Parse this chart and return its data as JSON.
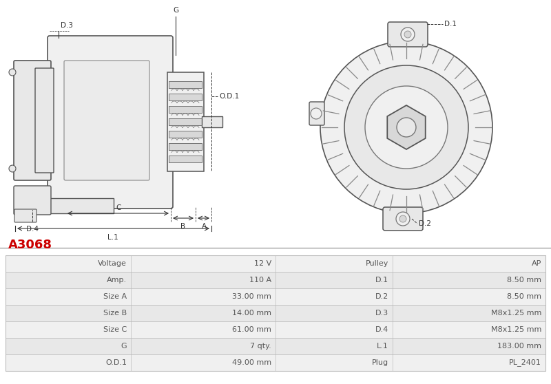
{
  "title": "A3068",
  "title_color": "#cc0000",
  "bg_color": "#ffffff",
  "table_rows": [
    [
      "Voltage",
      "12 V",
      "Pulley",
      "AP"
    ],
    [
      "Amp.",
      "110 A",
      "D.1",
      "8.50 mm"
    ],
    [
      "Size A",
      "33.00 mm",
      "D.2",
      "8.50 mm"
    ],
    [
      "Size B",
      "14.00 mm",
      "D.3",
      "M8x1.25 mm"
    ],
    [
      "Size C",
      "61.00 mm",
      "D.4",
      "M8x1.25 mm"
    ],
    [
      "G",
      "7 qty.",
      "L.1",
      "183.00 mm"
    ],
    [
      "O.D.1",
      "49.00 mm",
      "Plug",
      "PL_2401"
    ]
  ],
  "dim_color": "#333333",
  "line_color": "#555555",
  "fill_light": "#f0f0f0",
  "fill_mid": "#e8e8e8",
  "fill_dark": "#d8d8d8",
  "row_bg_odd": "#f0f0f0",
  "row_bg_even": "#e8e8e8",
  "table_text_color": "#555555",
  "table_fontsize": 8.0,
  "dim_fontsize": 7.5
}
